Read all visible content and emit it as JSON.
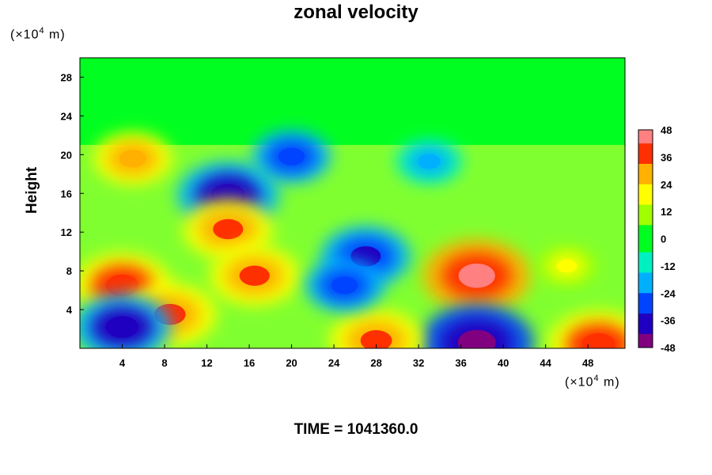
{
  "chart_data": {
    "type": "heatmap",
    "title": "zonal velocity",
    "xlabel": "",
    "ylabel": "Height",
    "x_unit": {
      "prefix": "(×10",
      "exp": "4",
      "suffix": " m)"
    },
    "y_unit": {
      "prefix": "(×10",
      "exp": "4",
      "suffix": " m)"
    },
    "xlim": [
      0,
      51.5
    ],
    "ylim": [
      0,
      30
    ],
    "x_ticks": [
      4,
      8,
      12,
      16,
      20,
      24,
      28,
      32,
      36,
      40,
      44,
      48
    ],
    "y_ticks": [
      4,
      8,
      12,
      16,
      20,
      24,
      28
    ],
    "colorbar": {
      "min": -48,
      "max": 48,
      "ticks": [
        48,
        36,
        24,
        12,
        0,
        -12,
        -24,
        -36,
        -48
      ],
      "colors": [
        "#800080",
        "#2000c0",
        "#0044ff",
        "#00b0ff",
        "#00f0c0",
        "#00ff20",
        "#a0ff00",
        "#ffff00",
        "#ffb000",
        "#ff3000",
        "#ff8080"
      ]
    },
    "features": [
      {
        "x": 37.5,
        "y": 7.5,
        "value": 46
      },
      {
        "x": 37.5,
        "y": 0.6,
        "value": -48
      },
      {
        "x": 28,
        "y": 0.8,
        "value": 38
      },
      {
        "x": 4,
        "y": 6.5,
        "value": 40
      },
      {
        "x": 8.5,
        "y": 3.5,
        "value": 38
      },
      {
        "x": 4,
        "y": 2.2,
        "value": -40
      },
      {
        "x": 14,
        "y": 15.8,
        "value": -42
      },
      {
        "x": 14,
        "y": 12.3,
        "value": 36
      },
      {
        "x": 16.5,
        "y": 7.5,
        "value": 36
      },
      {
        "x": 27,
        "y": 9.5,
        "value": -36
      },
      {
        "x": 25,
        "y": 6.5,
        "value": -30
      },
      {
        "x": 49,
        "y": 0.4,
        "value": 42
      },
      {
        "x": 5,
        "y": 19.6,
        "value": 30
      },
      {
        "x": 20,
        "y": 19.8,
        "value": -30
      },
      {
        "x": 33,
        "y": 19.3,
        "value": -24
      },
      {
        "x": 46,
        "y": 8.5,
        "value": 20
      }
    ],
    "time_label": "TIME = 1041360.0"
  }
}
